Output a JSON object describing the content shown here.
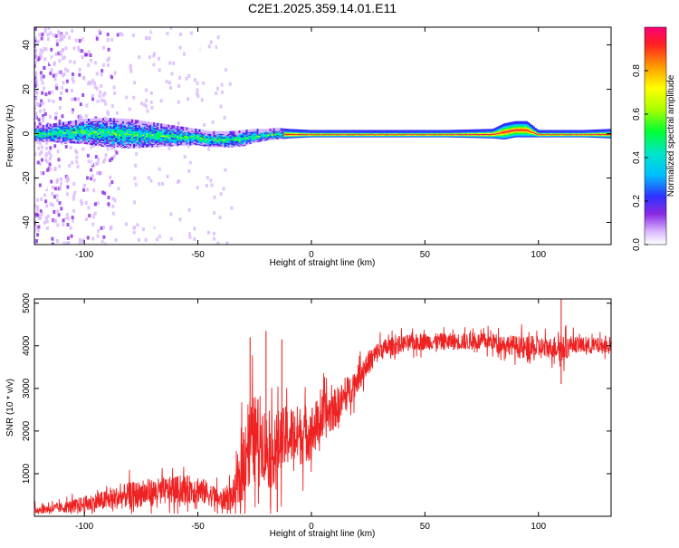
{
  "title": "C2E1.2025.359.14.01.E11",
  "chart_data": [
    {
      "type": "heatmap",
      "xlabel": "Height of straight line (km)",
      "ylabel": "Frequency (Hz)",
      "xlim": [
        -122,
        132
      ],
      "ylim": [
        -50,
        48
      ],
      "xticks": [
        -100,
        -50,
        0,
        50,
        100
      ],
      "yticks": [
        -40,
        -20,
        0,
        20,
        40
      ],
      "ridge": {
        "description_points_x": [
          -120,
          -100,
          -90,
          -80,
          -70,
          -60,
          -50,
          -45,
          -40,
          -35,
          -30,
          -25,
          -20,
          -15,
          -10,
          0,
          10,
          20,
          40,
          60,
          80,
          85,
          90,
          95,
          100,
          110,
          120,
          132
        ],
        "center_hz": [
          0,
          1,
          0.5,
          0,
          -0.5,
          -1,
          -1.5,
          -2.5,
          -2.5,
          -2.5,
          -2,
          -1,
          -0.5,
          0,
          0,
          0,
          0,
          0,
          0,
          0,
          0,
          1,
          2,
          2,
          0,
          0,
          0,
          0
        ],
        "half_width_hz": [
          3,
          5,
          6,
          6,
          5,
          4,
          3,
          3,
          3,
          3,
          3,
          2.5,
          2,
          2,
          1.5,
          1,
          1,
          1,
          1,
          1,
          1.5,
          3,
          3,
          3,
          1,
          1,
          1,
          1.5
        ]
      },
      "scatter_region_x": [
        -122,
        -35
      ],
      "colorbar": {
        "label": "Normalized spectral amplitude",
        "range": [
          0,
          1
        ],
        "ticks": [
          0.0,
          0.2,
          0.4,
          0.6,
          0.8
        ],
        "tick_labels": [
          "0.0",
          "0.2",
          "0.4",
          "0.6",
          "0.8"
        ]
      }
    },
    {
      "type": "line",
      "xlabel": "Height of straight line (km)",
      "ylabel": "SNR (10 * v/v)",
      "xlim": [
        -122,
        132
      ],
      "ylim": [
        0,
        5100
      ],
      "xticks": [
        -100,
        -50,
        0,
        50,
        100
      ],
      "yticks": [
        1000,
        2000,
        3000,
        4000,
        5000
      ],
      "series": [
        {
          "name": "SNR",
          "color": "#ee2222",
          "x": [
            -122,
            -110,
            -100,
            -90,
            -80,
            -70,
            -60,
            -50,
            -45,
            -40,
            -35,
            -32,
            -30,
            -28,
            -25,
            -22,
            -20,
            -18,
            -15,
            -10,
            -5,
            0,
            5,
            10,
            15,
            20,
            25,
            30,
            40,
            50,
            60,
            70,
            80,
            90,
            95,
            100,
            105,
            110,
            111,
            115,
            120,
            125,
            132
          ],
          "mean": [
            150,
            200,
            280,
            380,
            500,
            560,
            620,
            640,
            520,
            380,
            450,
            700,
            1300,
            1800,
            1800,
            1900,
            1600,
            1400,
            1700,
            1900,
            1900,
            2000,
            2300,
            2500,
            2800,
            3200,
            3600,
            3900,
            4050,
            4100,
            4100,
            4100,
            4100,
            4000,
            3900,
            3950,
            3950,
            4000,
            3900,
            4050,
            4000,
            4000,
            4000
          ],
          "noise": [
            120,
            150,
            250,
            300,
            380,
            400,
            400,
            420,
            350,
            300,
            400,
            700,
            1200,
            1300,
            1300,
            1200,
            1100,
            1000,
            1000,
            900,
            900,
            800,
            700,
            600,
            500,
            400,
            350,
            300,
            250,
            250,
            250,
            250,
            250,
            300,
            400,
            350,
            300,
            400,
            400,
            250,
            250,
            250,
            200
          ],
          "spikes": [
            [
              -27,
              4200
            ],
            [
              -20,
              4350
            ],
            [
              -18,
              180
            ],
            [
              -13,
              4150
            ],
            [
              -15,
              100
            ],
            [
              110,
              5100
            ],
            [
              110,
              3100
            ]
          ]
        }
      ]
    }
  ]
}
